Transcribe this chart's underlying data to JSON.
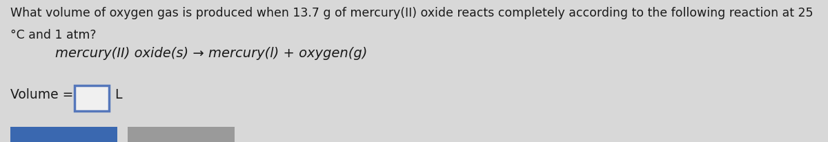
{
  "background_color": "#d8d8d8",
  "line1": "What volume of oxygen gas is produced when 13.7 g of mercury(II) oxide reacts completely according to the following reaction at 25",
  "line2": "°C and 1 atm?",
  "reaction": "mercury(II) oxide(s) → mercury(l) + oxygen(g)",
  "volume_label": "Volume =",
  "unit_label": "L",
  "text_color": "#1a1a1a",
  "input_box_fill": "#f0f0f0",
  "input_box_border": "#5577bb",
  "button1_color": "#3a68b0",
  "button2_color": "#9a9a9a",
  "right_circle_color": "#5577cc",
  "main_fontsize": 12.5,
  "reaction_fontsize": 14.0,
  "volume_fontsize": 13.5
}
